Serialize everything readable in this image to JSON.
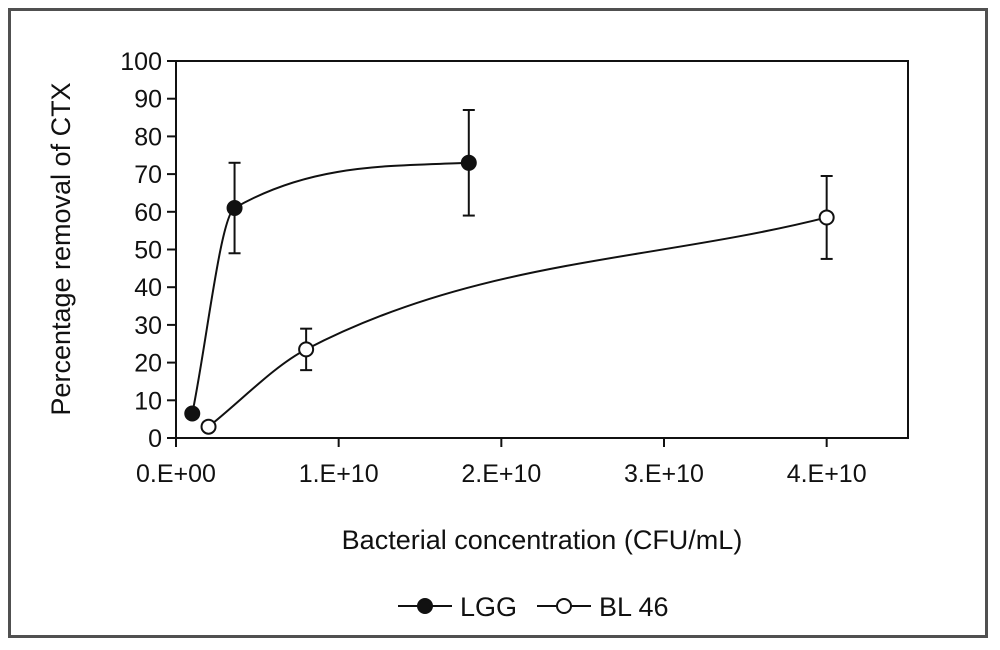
{
  "chart_data": {
    "type": "scatter",
    "xlabel": "Bacterial concentration (CFU/mL)",
    "ylabel": "Percentage removal of CTX",
    "xlim": [
      0,
      45000000000
    ],
    "ylim": [
      0,
      100
    ],
    "x_ticks": [
      0,
      10000000000,
      20000000000,
      30000000000,
      40000000000
    ],
    "x_tick_labels": [
      "0.E+00",
      "1.E+10",
      "2.E+10",
      "3.E+10",
      "4.E+10"
    ],
    "y_ticks": [
      0,
      10,
      20,
      30,
      40,
      50,
      60,
      70,
      80,
      90,
      100
    ],
    "y_tick_labels": [
      "0",
      "10",
      "20",
      "30",
      "40",
      "50",
      "60",
      "70",
      "80",
      "90",
      "100"
    ],
    "grid": false,
    "legend_position": "bottom",
    "series": [
      {
        "name": "LGG",
        "marker": "filled-circle",
        "color": "#111111",
        "x": [
          1000000000,
          3600000000,
          18000000000
        ],
        "y": [
          6.5,
          61,
          73
        ],
        "error": [
          0,
          12,
          14
        ]
      },
      {
        "name": "BL 46",
        "marker": "open-circle",
        "color": "#111111",
        "x": [
          2000000000,
          8000000000,
          40000000000
        ],
        "y": [
          3,
          23.5,
          58.5
        ],
        "error": [
          0,
          5.5,
          11
        ]
      }
    ]
  }
}
